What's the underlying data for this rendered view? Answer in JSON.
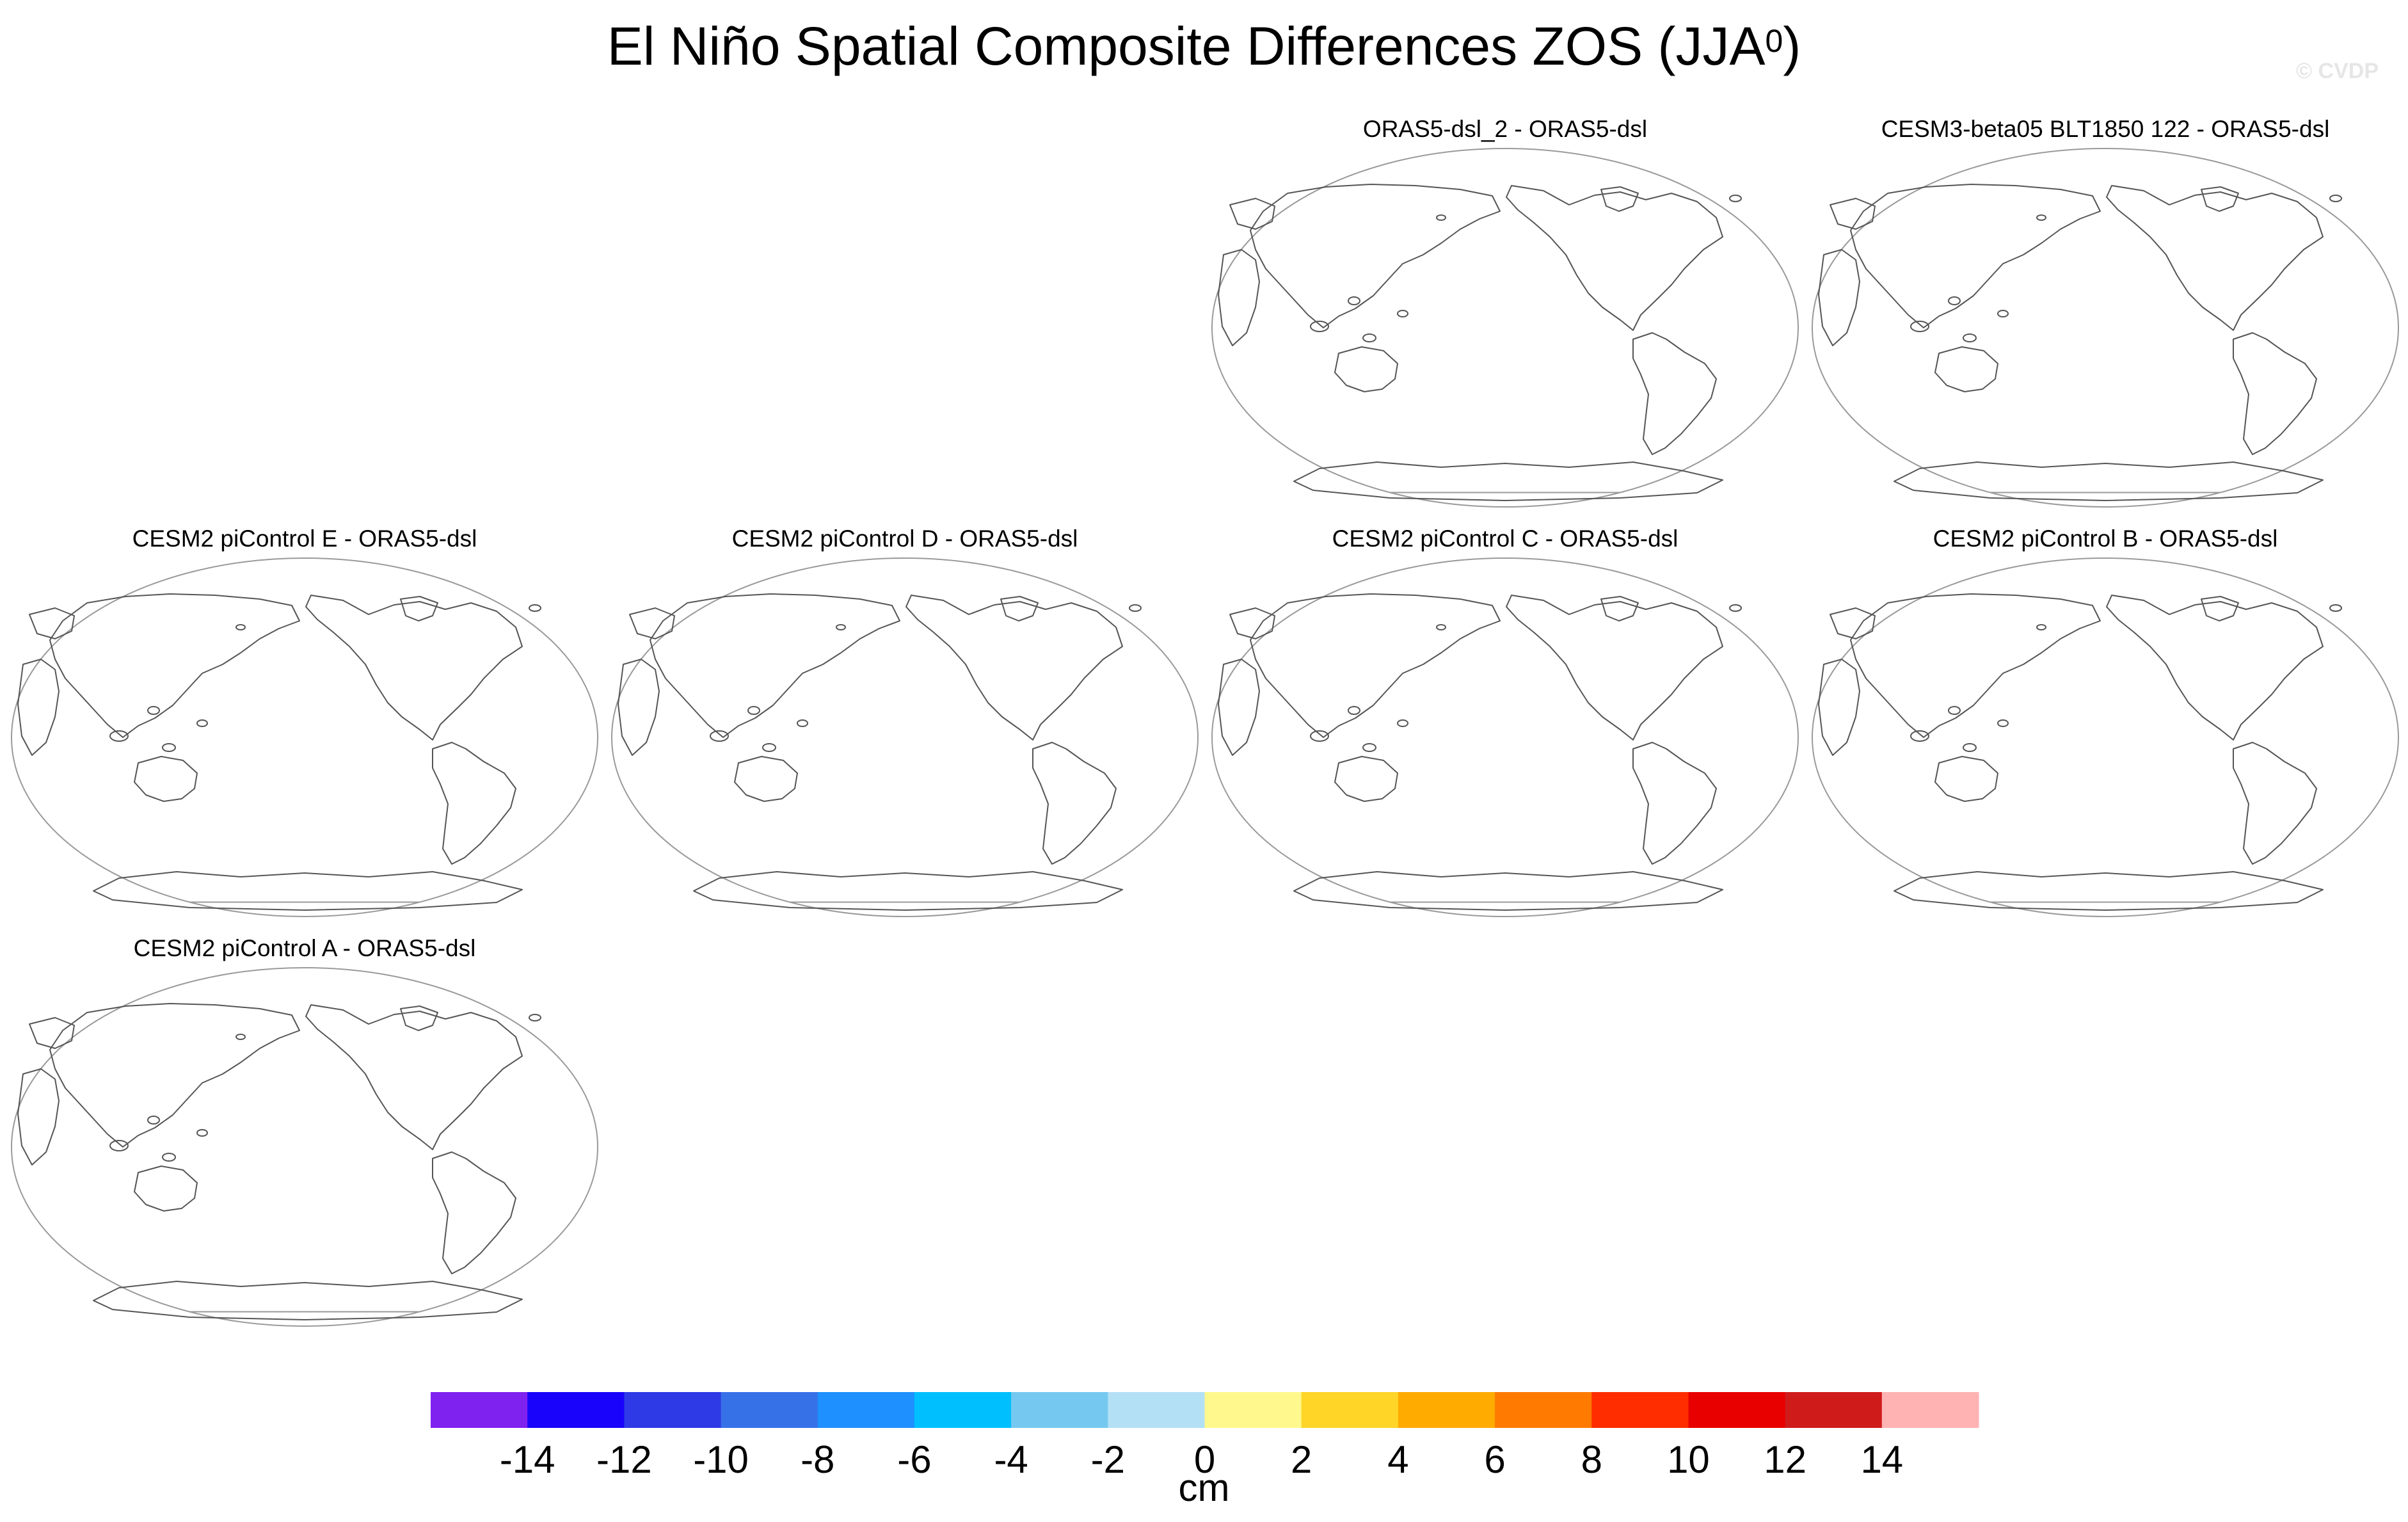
{
  "title": {
    "main": "El Niño Spatial Composite Differences ZOS (JJA",
    "superscript": "0",
    "close": ")"
  },
  "watermark": "© CVDP",
  "panels": [
    {
      "id": "p1",
      "label": "ORAS5-dsl_2 - ORAS5-dsl"
    },
    {
      "id": "p2",
      "label": "CESM3-beta05 BLT1850 122 - ORAS5-dsl"
    },
    {
      "id": "p3",
      "label": "CESM2 piControl E - ORAS5-dsl"
    },
    {
      "id": "p4",
      "label": "CESM2 piControl D - ORAS5-dsl"
    },
    {
      "id": "p5",
      "label": "CESM2 piControl C - ORAS5-dsl"
    },
    {
      "id": "p6",
      "label": "CESM2 piControl B - ORAS5-dsl"
    },
    {
      "id": "p7",
      "label": "CESM2 piControl A - ORAS5-dsl"
    }
  ],
  "chart_data": {
    "type": "heatmap",
    "variable": "ZOS",
    "season": "JJA0",
    "colorbar": {
      "label": "cm",
      "levels": [
        -14,
        -12,
        -10,
        -8,
        -6,
        -4,
        -2,
        0,
        2,
        4,
        6,
        8,
        10,
        12,
        14
      ],
      "colors": [
        "#7f22ef",
        "#1a03fb",
        "#2e3ae6",
        "#3771e8",
        "#1e90ff",
        "#00bfff",
        "#75c9f0",
        "#b4e0f5",
        "#fff88d",
        "#ffd528",
        "#ffab00",
        "#ff7a00",
        "#ff2d00",
        "#e80000",
        "#d01b1b",
        "#ffb3b3"
      ]
    }
  }
}
